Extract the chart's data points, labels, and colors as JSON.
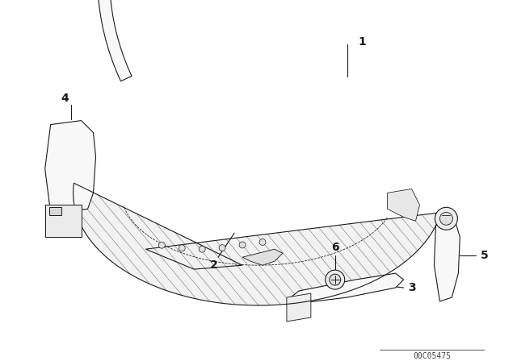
{
  "background_color": "#ffffff",
  "part_number": "00C05475",
  "line_color": "#1a1a1a",
  "line_width": 0.8,
  "label_fontsize": 10,
  "hatch_color": "#666666",
  "fill_color": "#f8f8f8",
  "detail_color": "#444444"
}
